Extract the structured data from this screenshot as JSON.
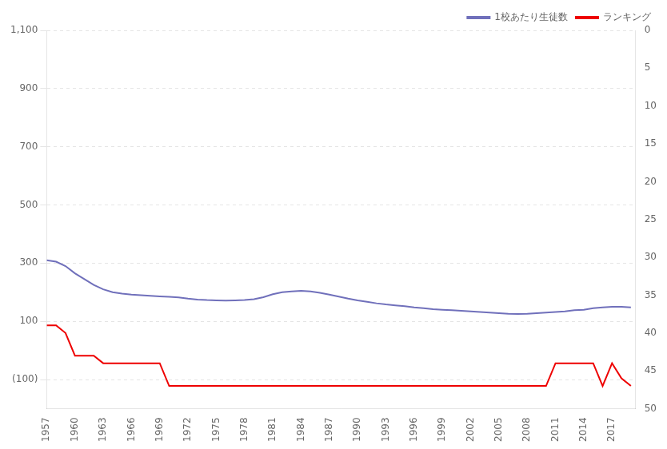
{
  "chart_data": {
    "type": "line",
    "x": [
      1957,
      1958,
      1959,
      1960,
      1961,
      1962,
      1963,
      1964,
      1965,
      1966,
      1967,
      1968,
      1969,
      1970,
      1971,
      1972,
      1973,
      1974,
      1975,
      1976,
      1977,
      1978,
      1979,
      1980,
      1981,
      1982,
      1983,
      1984,
      1985,
      1986,
      1987,
      1988,
      1989,
      1990,
      1991,
      1992,
      1993,
      1994,
      1995,
      1996,
      1997,
      1998,
      1999,
      2000,
      2001,
      2002,
      2003,
      2004,
      2005,
      2006,
      2007,
      2008,
      2009,
      2010,
      2011,
      2012,
      2013,
      2014,
      2015,
      2016,
      2017,
      2018,
      2019
    ],
    "xlim": [
      1957,
      2019.5
    ],
    "xticks": [
      1957,
      1960,
      1963,
      1966,
      1969,
      1972,
      1975,
      1978,
      1981,
      1984,
      1987,
      1990,
      1993,
      1996,
      1999,
      2002,
      2005,
      2008,
      2011,
      2014,
      2017
    ],
    "ylim": [
      -200,
      1100
    ],
    "yticks": [
      {
        "value": -100,
        "label": "(100)"
      },
      100,
      300,
      500,
      700,
      900,
      {
        "value": 1100,
        "label": "1,100"
      }
    ],
    "y2lim": [
      50,
      0
    ],
    "y2ticks": [
      0,
      5,
      10,
      15,
      20,
      25,
      30,
      35,
      40,
      45,
      50
    ],
    "grid": "y",
    "legend": "upper right",
    "series": [
      {
        "name": "1校あたり生徒数",
        "color": "#7070BB",
        "values": [
          310,
          305,
          290,
          265,
          245,
          225,
          210,
          200,
          195,
          192,
          190,
          188,
          186,
          184,
          182,
          178,
          175,
          173,
          172,
          171,
          172,
          173,
          176,
          183,
          193,
          200,
          203,
          205,
          203,
          198,
          192,
          185,
          178,
          172,
          167,
          162,
          158,
          155,
          152,
          148,
          145,
          142,
          140,
          138,
          136,
          134,
          132,
          130,
          128,
          126,
          125,
          126,
          128,
          130,
          132,
          134,
          138,
          140,
          145,
          148,
          150,
          150,
          148
        ]
      },
      {
        "name": "ランキング",
        "color": "#EE0000",
        "axis": "y2",
        "values": [
          39,
          39,
          40,
          43,
          43,
          43,
          44,
          44,
          44,
          44,
          44,
          44,
          44,
          47,
          47,
          47,
          47,
          47,
          47,
          47,
          47,
          47,
          47,
          47,
          47,
          47,
          47,
          47,
          47,
          47,
          47,
          47,
          47,
          47,
          47,
          47,
          47,
          47,
          47,
          47,
          47,
          47,
          47,
          47,
          47,
          47,
          47,
          47,
          47,
          47,
          47,
          47,
          47,
          47,
          44,
          44,
          44,
          44,
          44,
          47,
          44,
          46,
          47
        ]
      }
    ]
  }
}
